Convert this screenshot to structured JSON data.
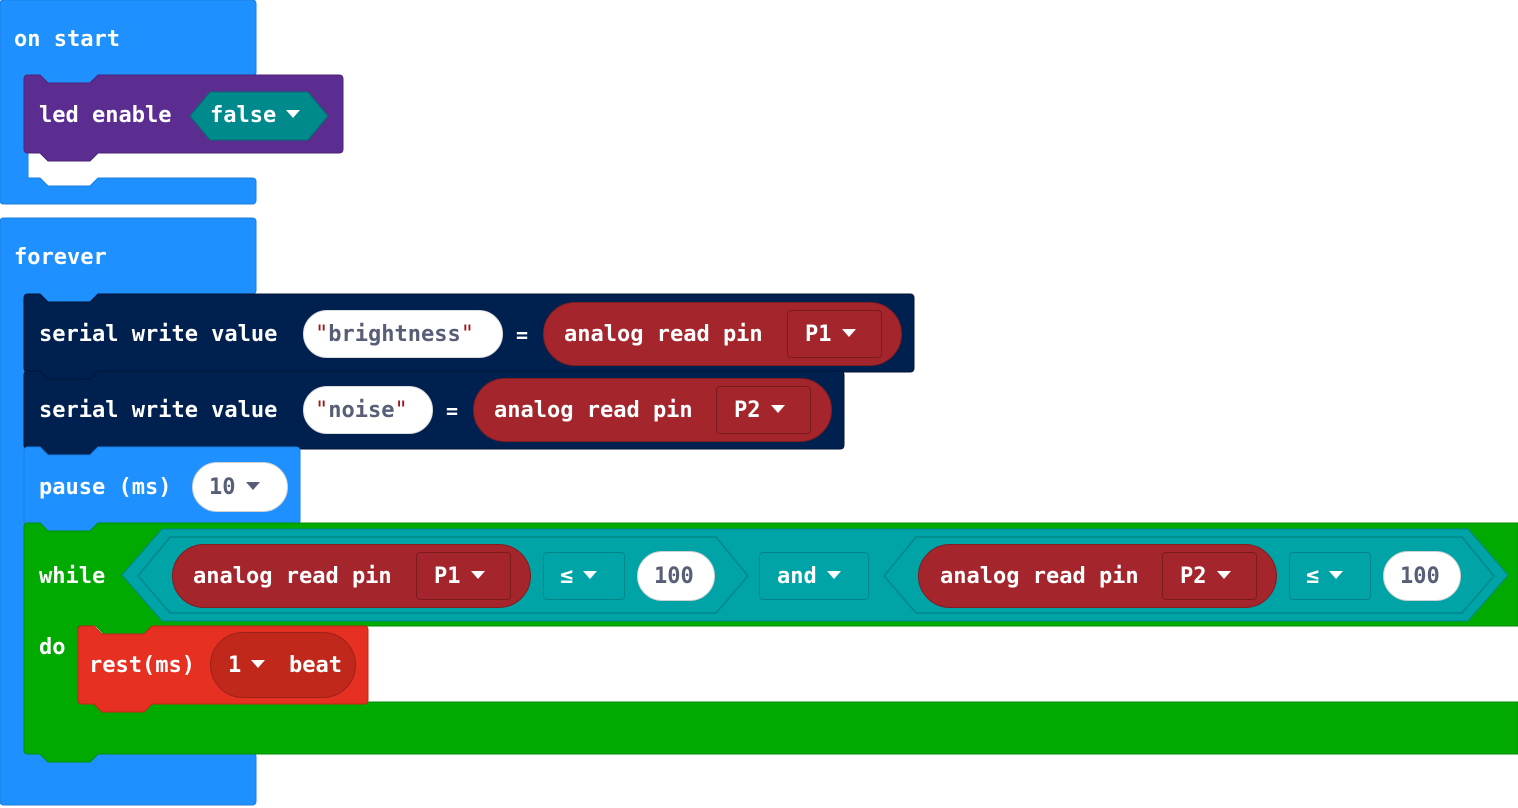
{
  "colors": {
    "events": "#1e90ff",
    "led": "#5c2d91",
    "serial": "#002050",
    "pins": "#a4262c",
    "logic_loop": "#00a4a6",
    "loops": "#00aa00",
    "music": "#e63022"
  },
  "on_start": {
    "label": "on start",
    "led_enable": {
      "label": "led enable",
      "value": "false"
    }
  },
  "forever": {
    "label": "forever",
    "serial1": {
      "label": "serial write value",
      "name": "brightness",
      "equals": "=",
      "read_label": "analog read pin",
      "pin": "P1"
    },
    "serial2": {
      "label": "serial write value",
      "name": "noise",
      "equals": "=",
      "read_label": "analog read pin",
      "pin": "P2"
    },
    "pause": {
      "label": "pause (ms)",
      "value": "10"
    },
    "while": {
      "label": "while",
      "do_label": "do",
      "left": {
        "read_label": "analog read pin",
        "pin": "P1",
        "op": "≤",
        "value": "100"
      },
      "logic_op": "and",
      "right": {
        "read_label": "analog read pin",
        "pin": "P2",
        "op": "≤",
        "value": "100"
      },
      "rest": {
        "label": "rest(ms)",
        "value": "1",
        "unit": "beat"
      }
    }
  }
}
